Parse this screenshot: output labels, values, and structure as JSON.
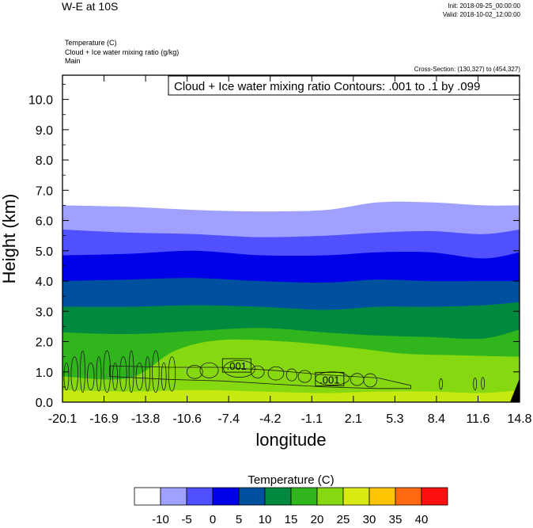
{
  "header": {
    "title": "W-E at 10S",
    "init": "Init: 2018-09-25_00:00:00",
    "valid": "Valid: 2018-10-02_12:00:00",
    "field_lines": [
      "Temperature   (C)",
      "Cloud + Ice water mixing ratio   (g/kg)",
      "Main"
    ],
    "cross_section": "Cross-Section: (130,327) to (454,327)"
  },
  "chart_data": {
    "type": "contour",
    "title": "W-E at 10S",
    "xlabel": "longitude",
    "ylabel": "Height (km)",
    "xlim": [
      -20.1,
      14.8
    ],
    "ylim": [
      0.0,
      10.8
    ],
    "x_ticks": [
      "-20.1",
      "-16.9",
      "-13.8",
      "-10.6",
      "-7.4",
      "-4.2",
      "-1.1",
      "2.1",
      "5.3",
      "8.4",
      "11.6",
      "14.8"
    ],
    "y_ticks": [
      {
        "value": 0.0,
        "label": "0.0"
      },
      {
        "value": 1.0,
        "label": "1.0"
      },
      {
        "value": 2.0,
        "label": "2.0"
      },
      {
        "value": 3.0,
        "label": "3.0"
      },
      {
        "value": 4.0,
        "label": "4.0"
      },
      {
        "value": 5.0,
        "label": "5.0"
      },
      {
        "value": 6.0,
        "label": "6.0"
      },
      {
        "value": 7.0,
        "label": "7.0"
      },
      {
        "value": 8.0,
        "label": "8.0"
      },
      {
        "value": 9.0,
        "label": "9.0"
      },
      {
        "value": 10.0,
        "label": "10.0"
      }
    ],
    "contour_info": "Cloud + Ice water mixing ratio Contours: .001 to .1 by .099",
    "contour_labels": [
      {
        "text": ".001",
        "x": -6.8,
        "y": 1.2
      },
      {
        "text": ".001",
        "x": 0.3,
        "y": 0.75
      }
    ],
    "temperature_bands": [
      {
        "top": [
          [
            -20.1,
            6.5
          ],
          [
            -15.0,
            6.45
          ],
          [
            -10.0,
            6.35
          ],
          [
            -5.0,
            6.3
          ],
          [
            0.0,
            6.35
          ],
          [
            4.0,
            6.6
          ],
          [
            8.0,
            6.6
          ],
          [
            12.0,
            6.5
          ],
          [
            14.8,
            6.5
          ]
        ],
        "color": "#a0a0ff"
      },
      {
        "top": [
          [
            -20.1,
            5.7
          ],
          [
            -15.0,
            5.6
          ],
          [
            -10.0,
            5.55
          ],
          [
            -5.0,
            5.45
          ],
          [
            0.0,
            5.5
          ],
          [
            4.0,
            5.6
          ],
          [
            8.0,
            5.65
          ],
          [
            12.0,
            5.55
          ],
          [
            14.8,
            5.7
          ]
        ],
        "color": "#5050ff"
      },
      {
        "top": [
          [
            -20.1,
            4.85
          ],
          [
            -15.0,
            4.9
          ],
          [
            -10.0,
            5.0
          ],
          [
            -5.0,
            4.85
          ],
          [
            0.0,
            4.85
          ],
          [
            4.0,
            4.95
          ],
          [
            8.0,
            4.95
          ],
          [
            12.0,
            4.75
          ],
          [
            14.8,
            4.95
          ]
        ],
        "color": "#0000e8"
      },
      {
        "top": [
          [
            -20.1,
            4.0
          ],
          [
            -15.0,
            4.05
          ],
          [
            -10.0,
            4.1
          ],
          [
            -5.0,
            4.0
          ],
          [
            0.0,
            3.95
          ],
          [
            4.0,
            4.05
          ],
          [
            8.0,
            4.0
          ],
          [
            12.0,
            4.0
          ],
          [
            14.8,
            4.0
          ]
        ],
        "color": "#0050a0"
      },
      {
        "top": [
          [
            -20.1,
            3.15
          ],
          [
            -15.0,
            3.15
          ],
          [
            -10.0,
            3.2
          ],
          [
            -5.0,
            3.15
          ],
          [
            0.0,
            3.05
          ],
          [
            4.0,
            3.15
          ],
          [
            8.0,
            3.15
          ],
          [
            12.0,
            3.2
          ],
          [
            14.8,
            3.3
          ]
        ],
        "color": "#00893f"
      },
      {
        "top": [
          [
            -20.1,
            2.3
          ],
          [
            -15.0,
            2.25
          ],
          [
            -10.0,
            2.35
          ],
          [
            -5.0,
            2.45
          ],
          [
            0.0,
            2.3
          ],
          [
            4.0,
            2.2
          ],
          [
            8.0,
            2.15
          ],
          [
            12.0,
            2.1
          ],
          [
            14.8,
            2.4
          ]
        ],
        "color": "#30b51c"
      },
      {
        "top": [
          [
            -20.1,
            0.85
          ],
          [
            -15.0,
            0.8
          ],
          [
            -11.5,
            1.7
          ],
          [
            -8.0,
            2.05
          ],
          [
            -3.0,
            2.0
          ],
          [
            2.0,
            1.8
          ],
          [
            6.0,
            1.6
          ],
          [
            10.0,
            1.55
          ],
          [
            14.8,
            1.5
          ]
        ],
        "color": "#86d810"
      },
      {
        "top": [
          [
            -20.1,
            0.4
          ],
          [
            -15.0,
            0.35
          ],
          [
            -10.0,
            0.4
          ],
          [
            -5.0,
            0.35
          ],
          [
            0.0,
            0.3
          ],
          [
            4.0,
            0.35
          ],
          [
            8.0,
            0.35
          ],
          [
            12.0,
            0.3
          ],
          [
            14.8,
            0.4
          ]
        ],
        "color": "#c6ea10"
      }
    ],
    "legend": {
      "title": "Temperature  (C)",
      "labels": [
        "-10",
        "-5",
        "0",
        "5",
        "10",
        "15",
        "20",
        "25",
        "30",
        "35",
        "40"
      ],
      "colors": [
        "#ffffff",
        "#a0a0ff",
        "#5050ff",
        "#0000e8",
        "#0050a0",
        "#00893f",
        "#30b51c",
        "#86d810",
        "#d8ea10",
        "#ffc400",
        "#ff6a10",
        "#ff1010"
      ]
    }
  }
}
